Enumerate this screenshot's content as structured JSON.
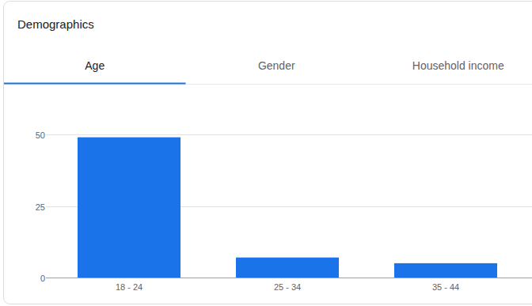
{
  "header": {
    "title": "Demographics",
    "tabs": [
      "Age",
      "Gender",
      "Household income"
    ]
  },
  "chart_data": {
    "type": "bar",
    "categories": [
      "18 - 24",
      "25 - 34",
      "35 - 44"
    ],
    "values": [
      49,
      7,
      5
    ],
    "color": "#1a73e8",
    "ylim": [
      0,
      50
    ],
    "yticks": [
      0,
      25,
      50
    ],
    "grid": true
  }
}
